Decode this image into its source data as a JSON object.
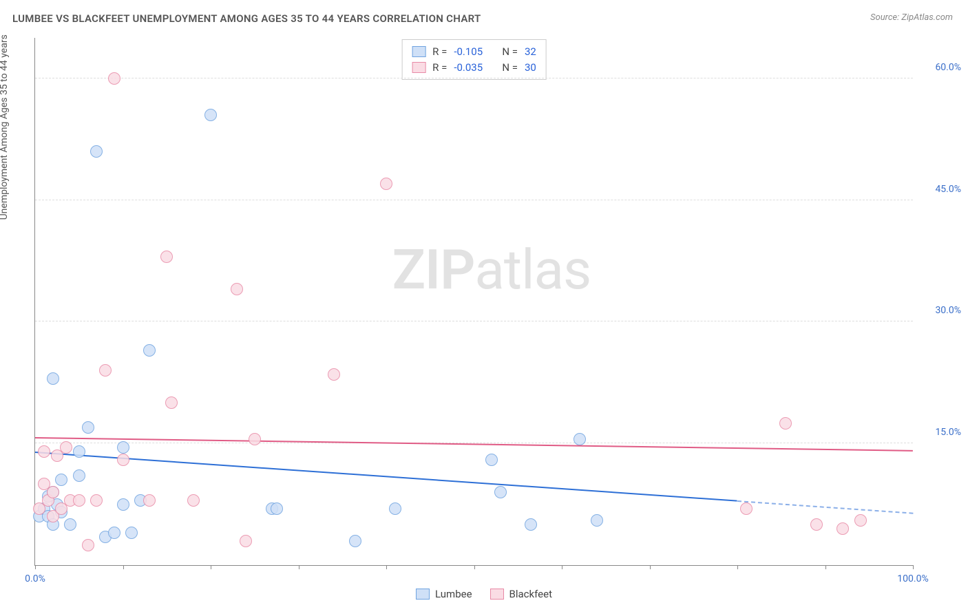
{
  "title": "LUMBEE VS BLACKFEET UNEMPLOYMENT AMONG AGES 35 TO 44 YEARS CORRELATION CHART",
  "source_label": "Source: ZipAtlas.com",
  "y_axis_label": "Unemployment Among Ages 35 to 44 years",
  "watermark_bold": "ZIP",
  "watermark_rest": "atlas",
  "chart": {
    "type": "scatter",
    "xlim": [
      0,
      100
    ],
    "ylim": [
      0,
      65
    ],
    "x_ticks": [
      0,
      10,
      20,
      30,
      40,
      50,
      60,
      70,
      80,
      90,
      100
    ],
    "x_tick_labels": {
      "0": "0.0%",
      "100": "100.0%"
    },
    "y_gridlines": [
      15,
      30,
      45,
      60
    ],
    "y_tick_labels": {
      "15": "15.0%",
      "30": "30.0%",
      "45": "45.0%",
      "60": "60.0%"
    },
    "background_color": "#ffffff",
    "grid_color": "#dddddd",
    "axis_color": "#888888",
    "tick_label_color": "#3b6fc9",
    "point_radius": 9,
    "series": [
      {
        "name": "Lumbee",
        "fill": "#cfe0f7",
        "stroke": "#6fa3e0",
        "line_color": "#2d6fd6",
        "R": "-0.105",
        "N": "32",
        "trend": {
          "x1": 0,
          "y1": 14.0,
          "x2": 80,
          "y2": 8.0,
          "dash_x2": 100,
          "dash_y2": 6.5
        },
        "points": [
          {
            "x": 0.5,
            "y": 6.0
          },
          {
            "x": 1.0,
            "y": 7.0
          },
          {
            "x": 1.5,
            "y": 6.0
          },
          {
            "x": 1.5,
            "y": 8.5
          },
          {
            "x": 2.0,
            "y": 5.0
          },
          {
            "x": 2.0,
            "y": 9.0
          },
          {
            "x": 2.0,
            "y": 23.0
          },
          {
            "x": 2.5,
            "y": 7.5
          },
          {
            "x": 3.0,
            "y": 6.5
          },
          {
            "x": 3.0,
            "y": 10.5
          },
          {
            "x": 4.0,
            "y": 5.0
          },
          {
            "x": 5.0,
            "y": 14.0
          },
          {
            "x": 5.0,
            "y": 11.0
          },
          {
            "x": 6.0,
            "y": 17.0
          },
          {
            "x": 7.0,
            "y": 51.0
          },
          {
            "x": 8.0,
            "y": 3.5
          },
          {
            "x": 9.0,
            "y": 4.0
          },
          {
            "x": 10.0,
            "y": 14.5
          },
          {
            "x": 10.0,
            "y": 7.5
          },
          {
            "x": 11.0,
            "y": 4.0
          },
          {
            "x": 12.0,
            "y": 8.0
          },
          {
            "x": 13.0,
            "y": 26.5
          },
          {
            "x": 20.0,
            "y": 55.5
          },
          {
            "x": 27.0,
            "y": 7.0
          },
          {
            "x": 27.5,
            "y": 7.0
          },
          {
            "x": 36.5,
            "y": 3.0
          },
          {
            "x": 41.0,
            "y": 7.0
          },
          {
            "x": 52.0,
            "y": 13.0
          },
          {
            "x": 53.0,
            "y": 9.0
          },
          {
            "x": 56.5,
            "y": 5.0
          },
          {
            "x": 62.0,
            "y": 15.5
          },
          {
            "x": 64.0,
            "y": 5.5
          }
        ]
      },
      {
        "name": "Blackfeet",
        "fill": "#fadce4",
        "stroke": "#e88aa6",
        "line_color": "#e05b85",
        "R": "-0.035",
        "N": "30",
        "trend": {
          "x1": 0,
          "y1": 15.8,
          "x2": 100,
          "y2": 14.2
        },
        "points": [
          {
            "x": 0.5,
            "y": 7.0
          },
          {
            "x": 1.0,
            "y": 10.0
          },
          {
            "x": 1.0,
            "y": 14.0
          },
          {
            "x": 1.5,
            "y": 8.0
          },
          {
            "x": 2.0,
            "y": 6.0
          },
          {
            "x": 2.0,
            "y": 9.0
          },
          {
            "x": 2.5,
            "y": 13.5
          },
          {
            "x": 3.0,
            "y": 7.0
          },
          {
            "x": 3.5,
            "y": 14.5
          },
          {
            "x": 4.0,
            "y": 8.0
          },
          {
            "x": 5.0,
            "y": 8.0
          },
          {
            "x": 6.0,
            "y": 2.5
          },
          {
            "x": 7.0,
            "y": 8.0
          },
          {
            "x": 8.0,
            "y": 24.0
          },
          {
            "x": 9.0,
            "y": 60.0
          },
          {
            "x": 10.0,
            "y": 13.0
          },
          {
            "x": 13.0,
            "y": 8.0
          },
          {
            "x": 15.0,
            "y": 38.0
          },
          {
            "x": 15.5,
            "y": 20.0
          },
          {
            "x": 18.0,
            "y": 8.0
          },
          {
            "x": 23.0,
            "y": 34.0
          },
          {
            "x": 24.0,
            "y": 3.0
          },
          {
            "x": 25.0,
            "y": 15.5
          },
          {
            "x": 34.0,
            "y": 23.5
          },
          {
            "x": 40.0,
            "y": 47.0
          },
          {
            "x": 81.0,
            "y": 7.0
          },
          {
            "x": 85.5,
            "y": 17.5
          },
          {
            "x": 89.0,
            "y": 5.0
          },
          {
            "x": 92.0,
            "y": 4.5
          },
          {
            "x": 94.0,
            "y": 5.5
          }
        ]
      }
    ]
  },
  "legend": {
    "items": [
      {
        "label": "Lumbee",
        "fill": "#cfe0f7",
        "stroke": "#6fa3e0"
      },
      {
        "label": "Blackfeet",
        "fill": "#fadce4",
        "stroke": "#e88aa6"
      }
    ]
  }
}
